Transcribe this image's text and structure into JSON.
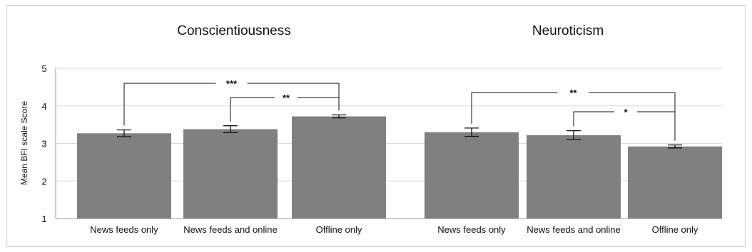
{
  "chart_data": {
    "type": "bar",
    "ylabel": "Mean BFI scale Score",
    "ylim": [
      1,
      5
    ],
    "yticks": [
      "1",
      "2",
      "3",
      "4",
      "5"
    ],
    "grid": true,
    "bar_color": "#808080",
    "panels": [
      {
        "title": "Conscientiousness",
        "categories": [
          "News feeds only",
          "News feeds and online",
          "Offline only"
        ],
        "values": [
          3.27,
          3.38,
          3.72
        ],
        "error": [
          0.09,
          0.09,
          0.04
        ],
        "significance": [
          {
            "from": 0,
            "to": 2,
            "label": "***"
          },
          {
            "from": 1,
            "to": 2,
            "label": "**"
          }
        ]
      },
      {
        "title": "Neuroticism",
        "categories": [
          "News feeds only",
          "News feeds and online",
          "Offline only"
        ],
        "values": [
          3.3,
          3.22,
          2.92
        ],
        "error": [
          0.11,
          0.12,
          0.04
        ],
        "significance": [
          {
            "from": 0,
            "to": 2,
            "label": "**"
          },
          {
            "from": 1,
            "to": 2,
            "label": "*"
          }
        ]
      }
    ]
  }
}
